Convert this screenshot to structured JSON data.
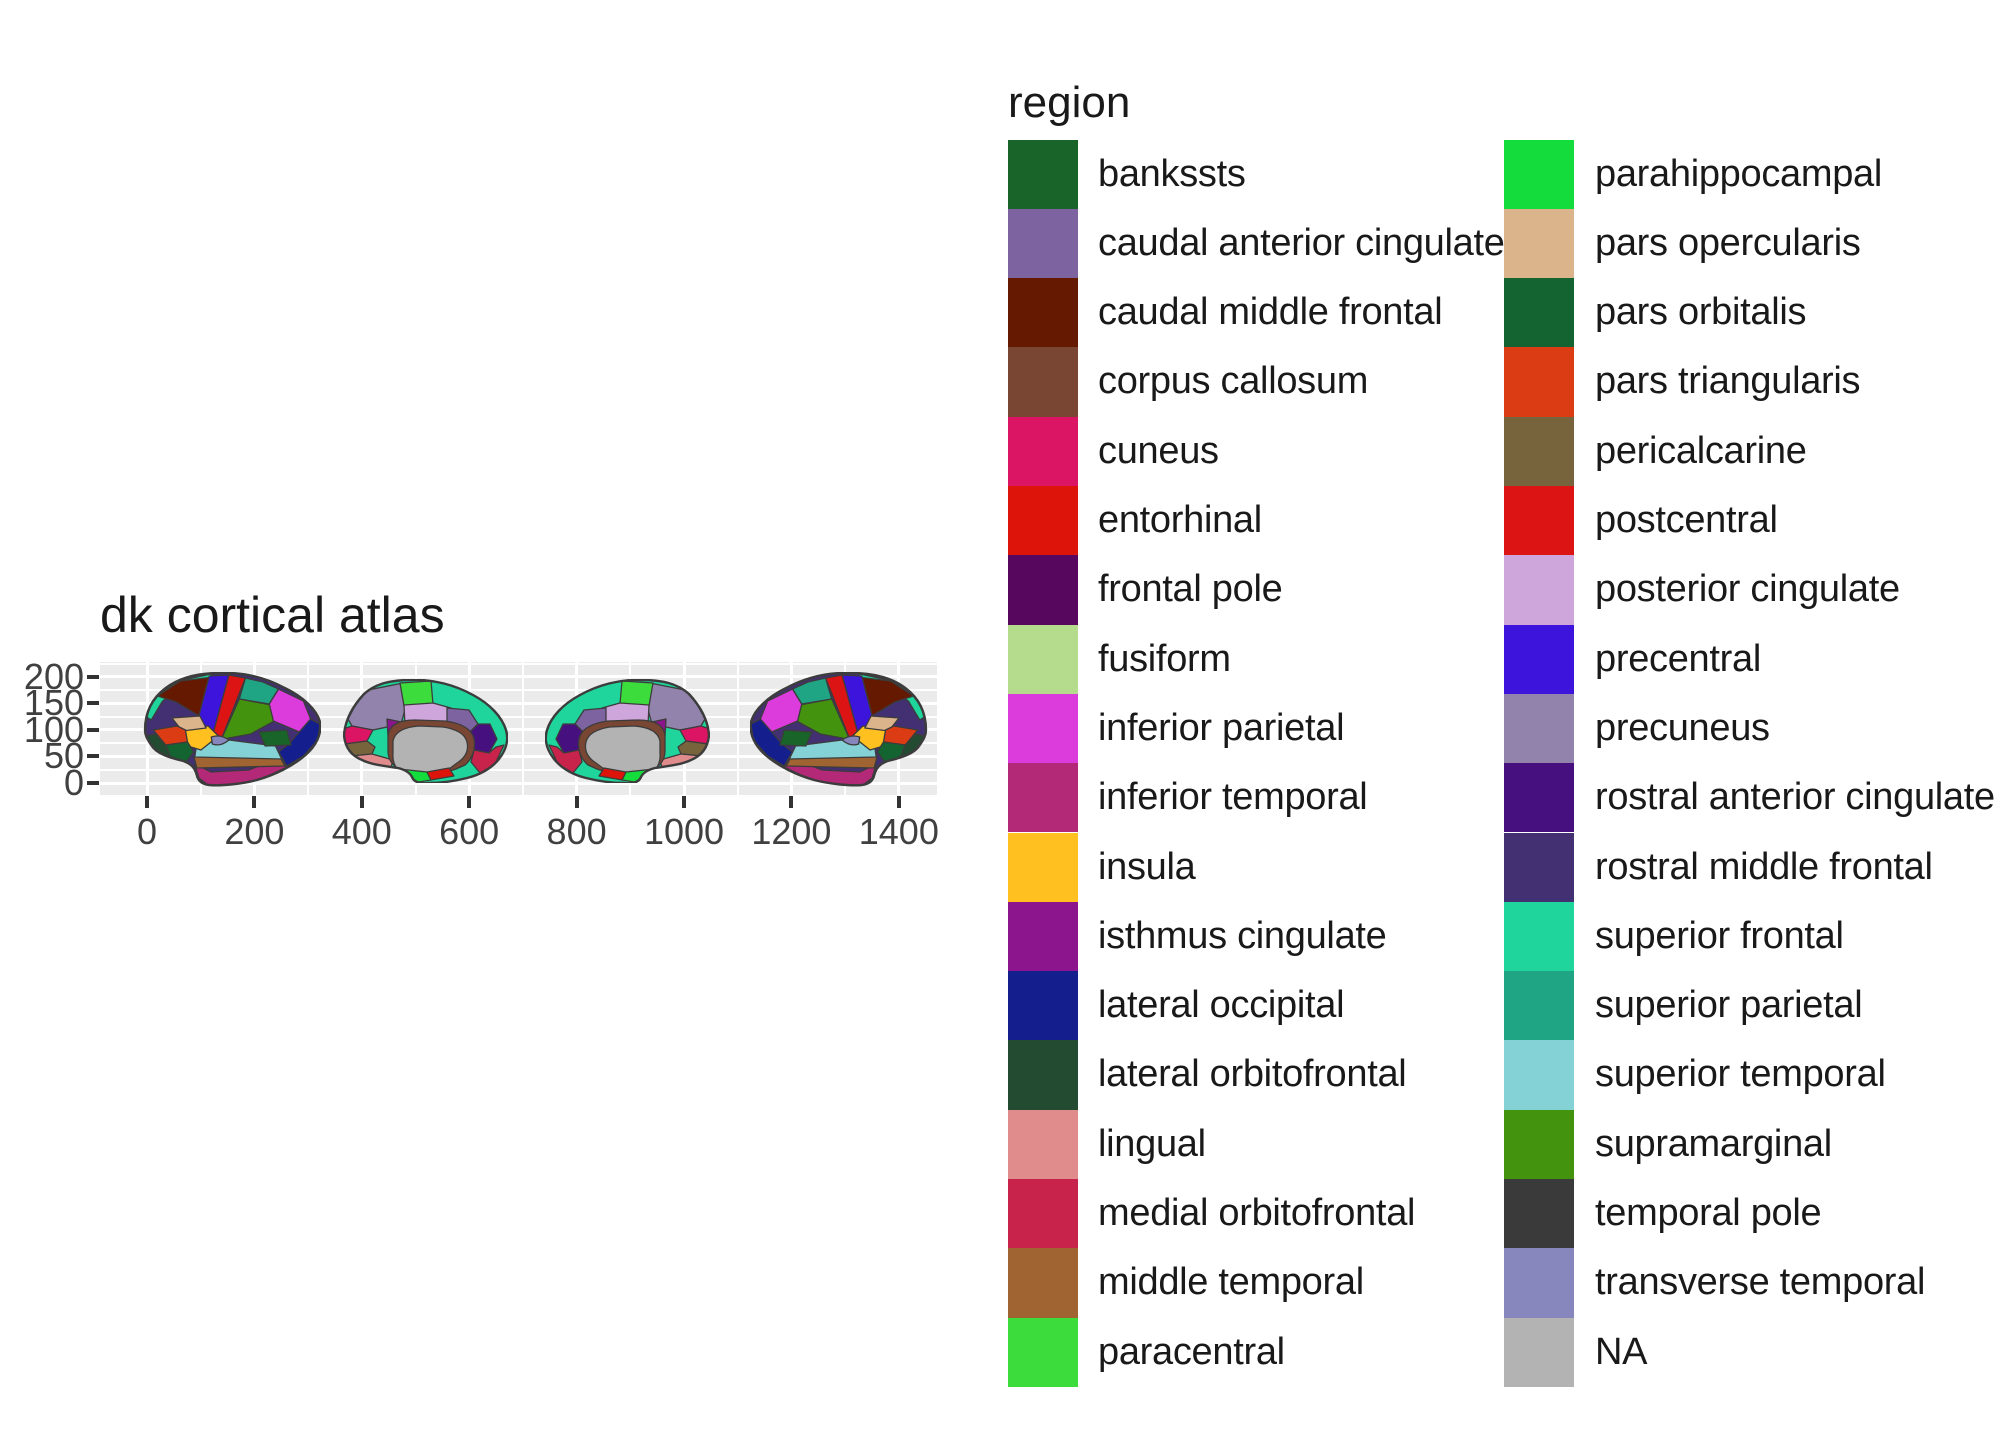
{
  "title": "dk cortical atlas",
  "axes": {
    "x_ticks": [
      "0",
      "200",
      "400",
      "600",
      "800",
      "1000",
      "1200",
      "1400"
    ],
    "y_ticks": [
      "200",
      "150",
      "100",
      "50",
      "0"
    ]
  },
  "legend": {
    "title": "region",
    "column1": [
      {
        "region": "bankssts",
        "label": "bankssts",
        "color": "#196428"
      },
      {
        "region": "caudal_anterior_cingulate",
        "label": "caudal anterior cingulate",
        "color": "#7D64A0"
      },
      {
        "region": "caudal_middle_frontal",
        "label": "caudal middle frontal",
        "color": "#641900"
      },
      {
        "region": "corpus_callosum",
        "label": "corpus callosum",
        "color": "#784632"
      },
      {
        "region": "cuneus",
        "label": "cuneus",
        "color": "#DC1464"
      },
      {
        "region": "entorhinal",
        "label": "entorhinal",
        "color": "#DC140A"
      },
      {
        "region": "frontal_pole",
        "label": "frontal pole",
        "color": "#58075E"
      },
      {
        "region": "fusiform",
        "label": "fusiform",
        "color": "#B4DC8C"
      },
      {
        "region": "inferior_parietal",
        "label": "inferior parietal",
        "color": "#DC3CDC"
      },
      {
        "region": "inferior_temporal",
        "label": "inferior temporal",
        "color": "#B42878"
      },
      {
        "region": "insula",
        "label": "insula",
        "color": "#FFC020"
      },
      {
        "region": "isthmus_cingulate",
        "label": "isthmus cingulate",
        "color": "#8C148C"
      },
      {
        "region": "lateral_occipital",
        "label": "lateral occipital",
        "color": "#141E8C"
      },
      {
        "region": "lateral_orbitofrontal",
        "label": "lateral orbitofrontal",
        "color": "#234B32"
      },
      {
        "region": "lingual",
        "label": "lingual",
        "color": "#E18C8C"
      },
      {
        "region": "medial_orbitofrontal",
        "label": "medial orbitofrontal",
        "color": "#C8234B"
      },
      {
        "region": "middle_temporal",
        "label": "middle temporal",
        "color": "#A06432"
      },
      {
        "region": "paracentral",
        "label": "paracentral",
        "color": "#3CDC3C"
      }
    ],
    "column2": [
      {
        "region": "parahippocampal",
        "label": "parahippocampal",
        "color": "#14DC3C"
      },
      {
        "region": "pars_opercularis",
        "label": "pars opercularis",
        "color": "#DCB48C"
      },
      {
        "region": "pars_orbitalis",
        "label": "pars orbitalis",
        "color": "#146432"
      },
      {
        "region": "pars_triangularis",
        "label": "pars triangularis",
        "color": "#DC3C14"
      },
      {
        "region": "pericalcarine",
        "label": "pericalcarine",
        "color": "#78643C"
      },
      {
        "region": "postcentral",
        "label": "postcentral",
        "color": "#DC1414"
      },
      {
        "region": "posterior_cingulate",
        "label": "posterior cingulate",
        "color": "#CFA6DC"
      },
      {
        "region": "precentral",
        "label": "precentral",
        "color": "#3C14DC"
      },
      {
        "region": "precuneus",
        "label": "precuneus",
        "color": "#9183AB"
      },
      {
        "region": "rostral_anterior_cingulate",
        "label": "rostral anterior cingulate",
        "color": "#46117E"
      },
      {
        "region": "rostral_middle_frontal",
        "label": "rostral middle frontal",
        "color": "#433073"
      },
      {
        "region": "superior_frontal",
        "label": "superior frontal",
        "color": "#1FD59B"
      },
      {
        "region": "superior_parietal",
        "label": "superior parietal",
        "color": "#1FA584"
      },
      {
        "region": "superior_temporal",
        "label": "superior temporal",
        "color": "#84D2D6"
      },
      {
        "region": "supramarginal",
        "label": "supramarginal",
        "color": "#44930F"
      },
      {
        "region": "temporal_pole",
        "label": "temporal pole",
        "color": "#3A3A3A"
      },
      {
        "region": "transverse_temporal",
        "label": "transverse temporal",
        "color": "#8787BE"
      },
      {
        "region": "na",
        "label": "NA",
        "color": "#B3B3B3"
      }
    ]
  },
  "views": [
    "left lateral",
    "left medial",
    "right medial",
    "right lateral"
  ],
  "style_colors": {
    "panel_background": "#EBEBEB",
    "gridline": "#FFFFFF",
    "region_outline": "#3C3C3C",
    "axis_text": "#404040",
    "tick_mark": "#333333",
    "title_text": "#191919"
  },
  "chart_data": {
    "type": "area",
    "subtype": "brain-atlas polygon map (ggseg dk cortical atlas)",
    "title": "dk cortical atlas",
    "xlabel": "",
    "ylabel": "",
    "x_ticks": [
      0,
      200,
      400,
      600,
      800,
      1000,
      1200,
      1400
    ],
    "y_ticks": [
      0,
      50,
      100,
      150,
      200
    ],
    "xlim": [
      -90,
      1470
    ],
    "ylim": [
      -25,
      228
    ],
    "grid": "on",
    "legend_position": "right",
    "panels": [
      {
        "view": "left lateral",
        "approx_x_center": 150
      },
      {
        "view": "left medial",
        "approx_x_center": 505
      },
      {
        "view": "right medial",
        "approx_x_center": 910
      },
      {
        "view": "right lateral",
        "approx_x_center": 1250
      }
    ],
    "categories": [
      "bankssts",
      "caudal anterior cingulate",
      "caudal middle frontal",
      "corpus callosum",
      "cuneus",
      "entorhinal",
      "frontal pole",
      "fusiform",
      "inferior parietal",
      "inferior temporal",
      "insula",
      "isthmus cingulate",
      "lateral occipital",
      "lateral orbitofrontal",
      "lingual",
      "medial orbitofrontal",
      "middle temporal",
      "paracentral",
      "parahippocampal",
      "pars opercularis",
      "pars orbitalis",
      "pars triangularis",
      "pericalcarine",
      "postcentral",
      "posterior cingulate",
      "precentral",
      "precuneus",
      "rostral anterior cingulate",
      "rostral middle frontal",
      "superior frontal",
      "superior parietal",
      "superior temporal",
      "supramarginal",
      "temporal pole",
      "transverse temporal",
      "NA"
    ]
  }
}
